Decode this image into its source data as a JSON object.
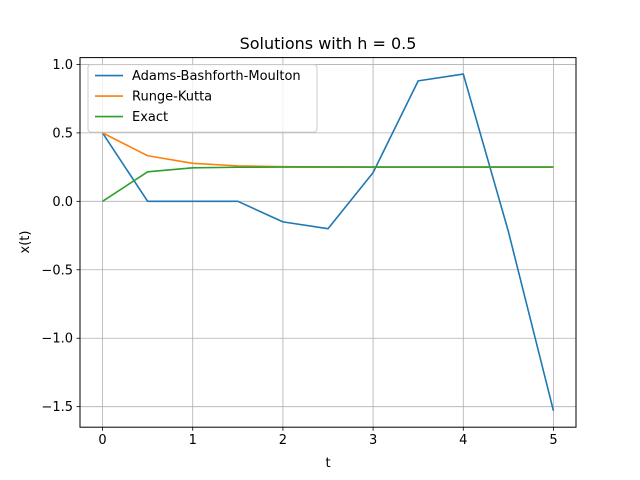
{
  "chart_data": {
    "type": "line",
    "title": "Solutions with h = 0.5",
    "xlabel": "t",
    "ylabel": "x(t)",
    "xlim": [
      -0.25,
      5.25
    ],
    "ylim": [
      -1.65,
      1.05
    ],
    "grid": true,
    "legend_position": "top-left",
    "x_ticks": [
      0,
      1,
      2,
      3,
      4,
      5
    ],
    "x_tick_labels": [
      "0",
      "1",
      "2",
      "3",
      "4",
      "5"
    ],
    "y_ticks": [
      1.0,
      0.5,
      0.0,
      -0.5,
      -1.0,
      -1.5
    ],
    "y_tick_labels": [
      "1.0",
      "0.5",
      "0.0",
      "−0.5",
      "−1.0",
      "−1.5"
    ],
    "x": [
      0,
      0.5,
      1,
      1.5,
      2,
      2.5,
      3,
      3.5,
      4,
      4.5,
      5
    ],
    "series": [
      {
        "name": "Adams-Bashforth-Moulton",
        "color": "#1f77b4",
        "values": [
          0.5,
          0.0,
          0.0,
          0.0,
          -0.15,
          -0.2,
          0.21,
          0.88,
          0.93,
          -0.22,
          -1.53
        ]
      },
      {
        "name": "Runge-Kutta",
        "color": "#ff7f0e",
        "values": [
          0.5,
          0.333,
          0.278,
          0.259,
          0.253,
          0.251,
          0.25,
          0.25,
          0.25,
          0.25,
          0.25
        ]
      },
      {
        "name": "Exact",
        "color": "#2ca02c",
        "values": [
          0.0,
          0.216,
          0.245,
          0.249,
          0.25,
          0.25,
          0.25,
          0.25,
          0.25,
          0.25,
          0.25
        ]
      }
    ]
  }
}
